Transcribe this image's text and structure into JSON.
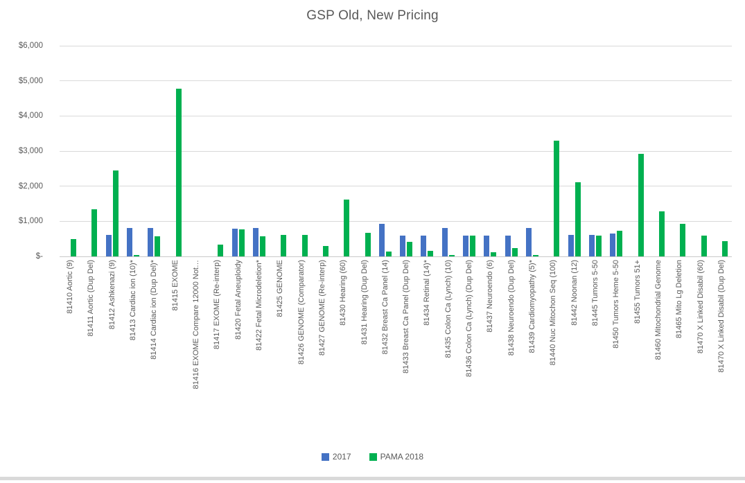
{
  "chart_data": {
    "type": "bar",
    "title": "GSP Old, New Pricing",
    "xlabel": "",
    "ylabel": "",
    "ylim": [
      0,
      6000
    ],
    "y_ticks": [
      "$6,000",
      "$5,000",
      "$4,000",
      "$3,000",
      "$2,000",
      "$1,000",
      "$-"
    ],
    "grid": true,
    "legend_position": "bottom",
    "categories": [
      "81410 Aortic (9)",
      "81411 Aortic (Dup Del)",
      "81412 Ashkenazi (9)",
      "81413 Cardiac ion (10)*",
      "81414 Cardiac ion (Dup Del)*",
      "81415 EXOME",
      "81416 EXOME Compare 12000 Not…",
      "81417 EXOME (Re-interp)",
      "81420 Fetal Aneuploidy",
      "81422 Fetal Microdeletion*",
      "81425 GENOME",
      "81426 GENOME (Comparator)",
      "81427 GENOME (Re-interp)",
      "81430 Hearing (60)",
      "81431 Hearing (Dup Del)",
      "81432 Breast Ca Panel (14)",
      "81433 Breast Ca Panel (Dup Del)",
      "81434 Retinal (14)*",
      "81435 Colon Ca (Lynch) (10)",
      "81436 Colon Ca (Lynch) (Dup Del)",
      "81437 Neuroendo (6)",
      "81438 Neuroendo (Dup Del)",
      "81439 Cardiomyopathy (5)*",
      "81440 Nuc Mitochon Seq (100)",
      "81442 Noonan (12)",
      "81445 Tumors 5-50",
      "81450 Tumors Heme 5-50",
      "81455 Tumors 51+",
      "81460 Mitochondrial Genome",
      "81465 Mito Lg Deletion",
      "81470 X Linked Disabil (60)",
      "81470 X Linked Disabil (Dup Del)"
    ],
    "series": [
      {
        "name": "2017",
        "color": "#4472C4",
        "values": [
          0,
          0,
          620,
          800,
          800,
          0,
          0,
          0,
          780,
          800,
          0,
          0,
          0,
          0,
          0,
          930,
          600,
          600,
          800,
          600,
          600,
          600,
          800,
          0,
          620,
          620,
          660,
          0,
          0,
          0,
          0,
          0
        ]
      },
      {
        "name": "PAMA 2018",
        "color": "#00B050",
        "values": [
          500,
          1350,
          2450,
          40,
          570,
          4780,
          0,
          330,
          760,
          580,
          610,
          610,
          300,
          1620,
          680,
          140,
          420,
          160,
          40,
          590,
          120,
          240,
          40,
          3300,
          2120,
          600,
          740,
          2920,
          1290,
          920,
          600,
          430
        ]
      }
    ]
  }
}
